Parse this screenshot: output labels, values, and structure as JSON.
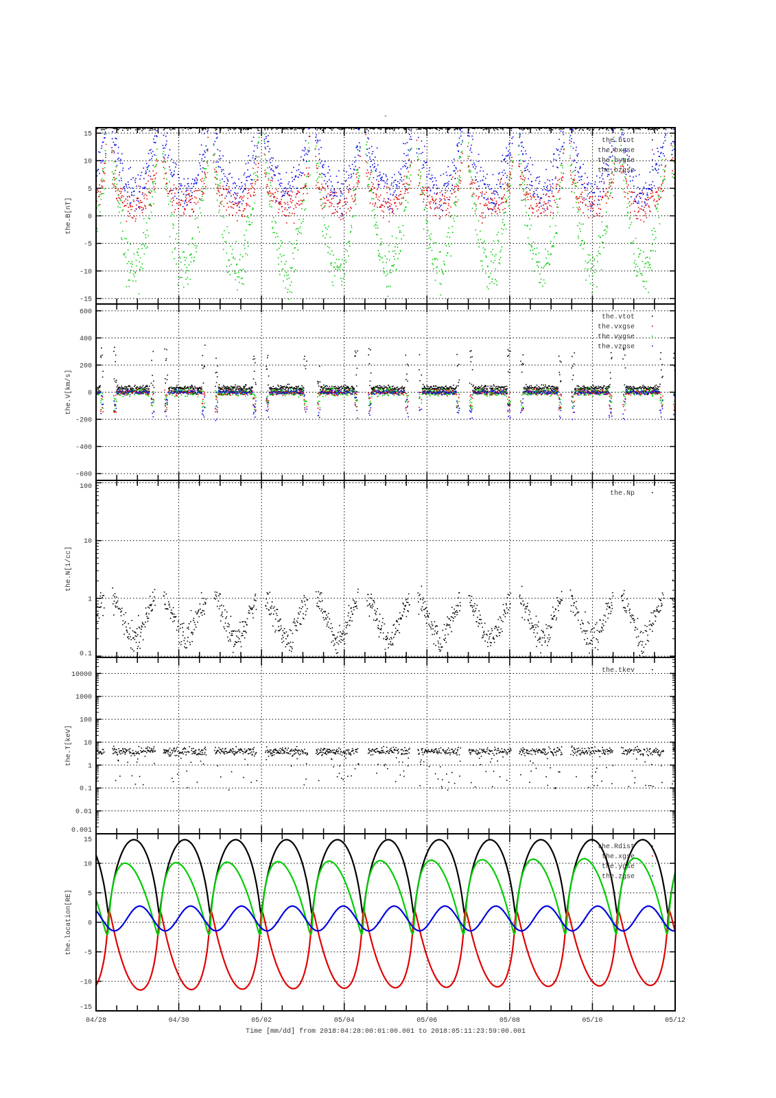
{
  "chart_data": {
    "type": "scatter",
    "title": "-",
    "xlabel": "Time [mm/dd]  from 2018:04:28:00:01:00.001  to  2018:05:11:23:59:00.001",
    "x_range_days": [
      0,
      14
    ],
    "x_ticks": [
      {
        "day": 0,
        "label": "04/28"
      },
      {
        "day": 2,
        "label": "04/30"
      },
      {
        "day": 4,
        "label": "05/02"
      },
      {
        "day": 6,
        "label": "05/04"
      },
      {
        "day": 8,
        "label": "05/06"
      },
      {
        "day": 10,
        "label": "05/08"
      },
      {
        "day": 12,
        "label": "05/10"
      },
      {
        "day": 14,
        "label": "05/12"
      }
    ],
    "orbit": {
      "period_days": 1.23,
      "first_perigee_day": 0.3,
      "apogee_RE": 14,
      "perigee_RE": 1.5
    },
    "panels": [
      {
        "id": "B",
        "ylabel": "the.B[nT]",
        "scale": "linear",
        "ylim": [
          -16,
          16
        ],
        "yticks": [
          15,
          10,
          5,
          0,
          -5,
          -10,
          -15
        ],
        "series": [
          {
            "name": "the.btot",
            "color": "#000000"
          },
          {
            "name": "the.bxgse",
            "color": "#e00000"
          },
          {
            "name": "the.bygse",
            "color": "#0000e0"
          },
          {
            "name": "the.bzgse",
            "color": "#00cc00"
          }
        ]
      },
      {
        "id": "V",
        "ylabel": "the.V[km/s]",
        "scale": "linear",
        "ylim": [
          -650,
          650
        ],
        "yticks": [
          600,
          400,
          200,
          0,
          -200,
          -400,
          -600
        ],
        "series": [
          {
            "name": "the.vtot",
            "color": "#000000"
          },
          {
            "name": "the.vxgse",
            "color": "#e00000"
          },
          {
            "name": "the.vygse",
            "color": "#00cc00"
          },
          {
            "name": "the.vzgse",
            "color": "#0000e0"
          }
        ]
      },
      {
        "id": "N",
        "ylabel": "the.N[1/cc]",
        "scale": "log",
        "ylim": [
          0.095,
          110
        ],
        "yticks": [
          100,
          10,
          1,
          0.1
        ],
        "ytick_labels": [
          "100",
          "10",
          "1",
          "0.1"
        ],
        "series": [
          {
            "name": "the.Np",
            "color": "#000000"
          }
        ]
      },
      {
        "id": "T",
        "ylabel": "the.T[keV]",
        "scale": "log",
        "ylim": [
          0.001,
          50000
        ],
        "yticks": [
          10000,
          1000,
          100,
          10,
          1,
          0.1,
          0.01,
          0.001
        ],
        "ytick_labels": [
          "10000",
          "1000",
          "100",
          "10",
          "1",
          "0.1",
          "0.01",
          "0.001"
        ],
        "series": [
          {
            "name": "the.tkev",
            "color": "#000000"
          }
        ]
      },
      {
        "id": "L",
        "ylabel": "the.location[RE]",
        "scale": "linear",
        "ylim": [
          -15,
          15
        ],
        "yticks": [
          15,
          10,
          5,
          0,
          -5,
          -10,
          -15
        ],
        "series": [
          {
            "name": "the.Rdist",
            "color": "#000000"
          },
          {
            "name": "the.xgse",
            "color": "#e00000"
          },
          {
            "name": "the.ygse",
            "color": "#00cc00"
          },
          {
            "name": "the.zgse",
            "color": "#0000e0"
          }
        ]
      }
    ]
  }
}
